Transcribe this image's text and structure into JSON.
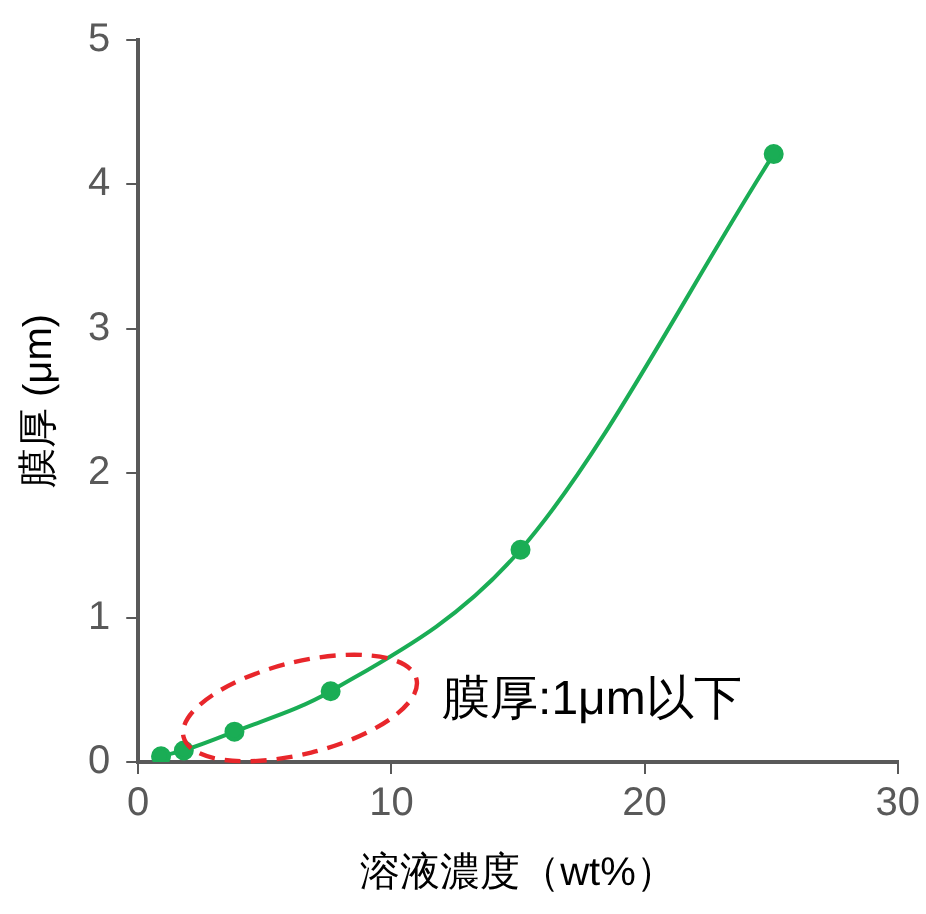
{
  "chart_data": {
    "type": "line",
    "xlabel": "溶液濃度（wt%）",
    "ylabel": "膜厚 (μm)",
    "x": [
      0.9,
      1.8,
      3.8,
      7.6,
      15.1,
      25.1
    ],
    "series": [
      {
        "color": "#1aad55",
        "values": [
          0.04,
          0.08,
          0.21,
          0.49,
          1.47,
          4.21
        ]
      }
    ],
    "xlim": [
      0,
      30
    ],
    "xticks": [
      0,
      10,
      20,
      30
    ],
    "ylim": [
      0,
      5
    ],
    "yticks": [
      0,
      1,
      2,
      3,
      4,
      5
    ],
    "grid": false,
    "legend": false,
    "marker": "circle",
    "line_style": "solid",
    "annotations": [
      "膜厚:1μm以下"
    ]
  }
}
